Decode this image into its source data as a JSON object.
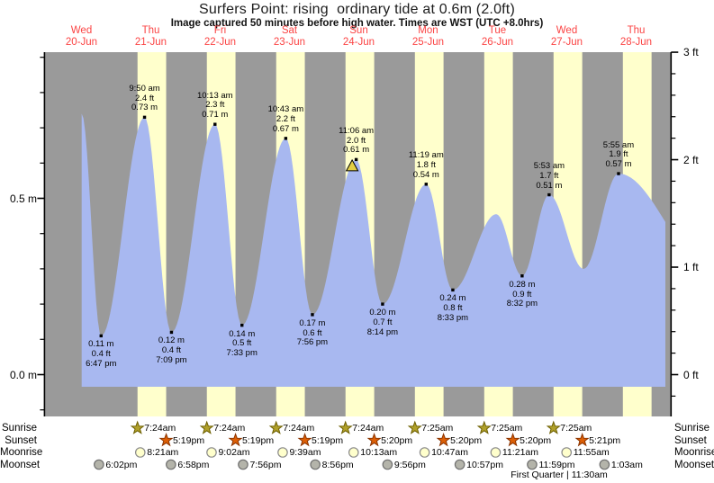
{
  "title": "Surfers Point: rising  ordinary tide at 0.6m (2.0ft)",
  "subtitle": "Image captured 50 minutes before high water. Times are WST (UTC +8.0hrs)",
  "days": [
    {
      "name": "Wed",
      "date": "20-Jun"
    },
    {
      "name": "Thu",
      "date": "21-Jun"
    },
    {
      "name": "Fri",
      "date": "22-Jun"
    },
    {
      "name": "Sat",
      "date": "23-Jun"
    },
    {
      "name": "Sun",
      "date": "24-Jun"
    },
    {
      "name": "Mon",
      "date": "25-Jun"
    },
    {
      "name": "Tue",
      "date": "26-Jun"
    },
    {
      "name": "Wed",
      "date": "27-Jun"
    },
    {
      "name": "Thu",
      "date": "28-Jun"
    }
  ],
  "y_axis": {
    "left_labels": [
      {
        "m": 0.5,
        "text": "0.5 m"
      },
      {
        "m": 0.0,
        "text": "0.0 m"
      }
    ],
    "right_labels": [
      {
        "ft": 3,
        "text": "3 ft"
      },
      {
        "ft": 2,
        "text": "2 ft"
      },
      {
        "ft": 1,
        "text": "1 ft"
      },
      {
        "ft": 0,
        "text": "0 ft"
      }
    ]
  },
  "chart_data": {
    "type": "area",
    "title": "Surfers Point tide curve, 20-Jun to 28-Jun",
    "y_unit_left": "m",
    "y_unit_right": "ft",
    "ylim_m": [
      -0.12,
      0.92
    ],
    "daylight_band_days": [
      1,
      2,
      3,
      4,
      5,
      6,
      7,
      8
    ],
    "extremes": [
      {
        "kind": "edge-start",
        "day": 0,
        "hour": 12.05,
        "value_m": 0.74
      },
      {
        "kind": "low",
        "day": 0,
        "time": "6:47 pm",
        "m_label": "0.11 m",
        "ft_label": "0.4 ft",
        "value_m": 0.11
      },
      {
        "kind": "high",
        "day": 1,
        "time": "9:50 am",
        "m_label": "0.73 m",
        "ft_label": "2.4 ft",
        "value_m": 0.73
      },
      {
        "kind": "low",
        "day": 1,
        "time": "7:09 pm",
        "m_label": "0.12 m",
        "ft_label": "0.4 ft",
        "value_m": 0.12
      },
      {
        "kind": "high",
        "day": 2,
        "time": "10:13 am",
        "m_label": "0.71 m",
        "ft_label": "2.3 ft",
        "value_m": 0.71
      },
      {
        "kind": "low",
        "day": 2,
        "time": "7:33 pm",
        "m_label": "0.14 m",
        "ft_label": "0.5 ft",
        "value_m": 0.14
      },
      {
        "kind": "high",
        "day": 3,
        "time": "10:43 am",
        "m_label": "0.67 m",
        "ft_label": "2.2 ft",
        "value_m": 0.67
      },
      {
        "kind": "low",
        "day": 3,
        "time": "7:56 pm",
        "m_label": "0.17 m",
        "ft_label": "0.6 ft",
        "value_m": 0.17
      },
      {
        "kind": "high",
        "day": 4,
        "time": "11:06 am",
        "m_label": "0.61 m",
        "ft_label": "2.0 ft",
        "value_m": 0.61,
        "current_marker": true
      },
      {
        "kind": "low",
        "day": 4,
        "time": "8:14 pm",
        "m_label": "0.20 m",
        "ft_label": "0.7 ft",
        "value_m": 0.2
      },
      {
        "kind": "high",
        "day": 5,
        "time": "11:19 am",
        "m_label": "0.54 m",
        "ft_label": "1.8 ft",
        "value_m": 0.54
      },
      {
        "kind": "low",
        "day": 5,
        "time": "8:33 pm",
        "m_label": "0.24 m",
        "ft_label": "0.8 ft",
        "value_m": 0.24
      },
      {
        "kind": "high-unlabeled",
        "day": 6,
        "hour": 11.6,
        "value_m": 0.455
      },
      {
        "kind": "low",
        "day": 6,
        "time": "8:32 pm",
        "m_label": "0.28 m",
        "ft_label": "0.9 ft",
        "value_m": 0.28
      },
      {
        "kind": "high",
        "day": 7,
        "time": "5:53 am",
        "m_label": "0.51 m",
        "ft_label": "1.7 ft",
        "value_m": 0.51
      },
      {
        "kind": "low-unlabeled",
        "day": 7,
        "hour": 17.8,
        "value_m": 0.3
      },
      {
        "kind": "high",
        "day": 8,
        "time": "5:55 am",
        "m_label": "0.57 m",
        "ft_label": "1.9 ft",
        "value_m": 0.57
      },
      {
        "kind": "edge-end",
        "day": 9,
        "hour": 14.0,
        "value_m": 0.3
      }
    ]
  },
  "astro": {
    "rows": [
      {
        "label": "Sunrise",
        "icon": "sunrise-star-icon",
        "events": [
          {
            "day": 1,
            "time": "7:24am"
          },
          {
            "day": 2,
            "time": "7:24am"
          },
          {
            "day": 3,
            "time": "7:24am"
          },
          {
            "day": 4,
            "time": "7:24am"
          },
          {
            "day": 5,
            "time": "7:25am"
          },
          {
            "day": 6,
            "time": "7:25am"
          },
          {
            "day": 7,
            "time": "7:25am"
          }
        ]
      },
      {
        "label": "Sunset",
        "icon": "sunset-star-icon",
        "events": [
          {
            "day": 1,
            "time": "5:19pm"
          },
          {
            "day": 2,
            "time": "5:19pm"
          },
          {
            "day": 3,
            "time": "5:19pm"
          },
          {
            "day": 4,
            "time": "5:20pm"
          },
          {
            "day": 5,
            "time": "5:20pm"
          },
          {
            "day": 6,
            "time": "5:20pm"
          },
          {
            "day": 7,
            "time": "5:21pm"
          }
        ]
      },
      {
        "label": "Moonrise",
        "icon": "moonrise-icon",
        "events": [
          {
            "day": 1,
            "time": "8:21am"
          },
          {
            "day": 2,
            "time": "9:02am"
          },
          {
            "day": 3,
            "time": "9:39am"
          },
          {
            "day": 4,
            "time": "10:13am"
          },
          {
            "day": 5,
            "time": "10:47am"
          },
          {
            "day": 6,
            "time": "11:21am"
          },
          {
            "day": 7,
            "time": "11:55am"
          }
        ]
      },
      {
        "label": "Moonset",
        "icon": "moonset-icon",
        "events": [
          {
            "day": 0,
            "time": "6:02pm"
          },
          {
            "day": 1,
            "time": "6:58pm"
          },
          {
            "day": 2,
            "time": "7:56pm"
          },
          {
            "day": 3,
            "time": "8:56pm"
          },
          {
            "day": 4,
            "time": "9:56pm"
          },
          {
            "day": 5,
            "time": "10:57pm"
          },
          {
            "day": 6,
            "time": "11:59pm"
          },
          {
            "day": 8,
            "time": "1:03am"
          }
        ]
      }
    ],
    "moon_phase_note": "First Quarter | 11:30am"
  },
  "colors": {
    "day_label": "#fb4343",
    "plot_bg": "#9a9a9a",
    "daylight_band": "#ffffcc",
    "water": "#a8b8f0",
    "current_marker": "#e3cf45",
    "sunrise_star": "#b0a02a",
    "sunrise_star_stroke": "#6e6000",
    "sunset_star": "#dd5f05",
    "sunset_star_stroke": "#8b3400",
    "moonrise_fill": "#ffffcc",
    "moonrise_stroke": "#8a8a8a",
    "moonset_fill": "#b4b4aa",
    "moonset_stroke": "#6f6f6f"
  }
}
